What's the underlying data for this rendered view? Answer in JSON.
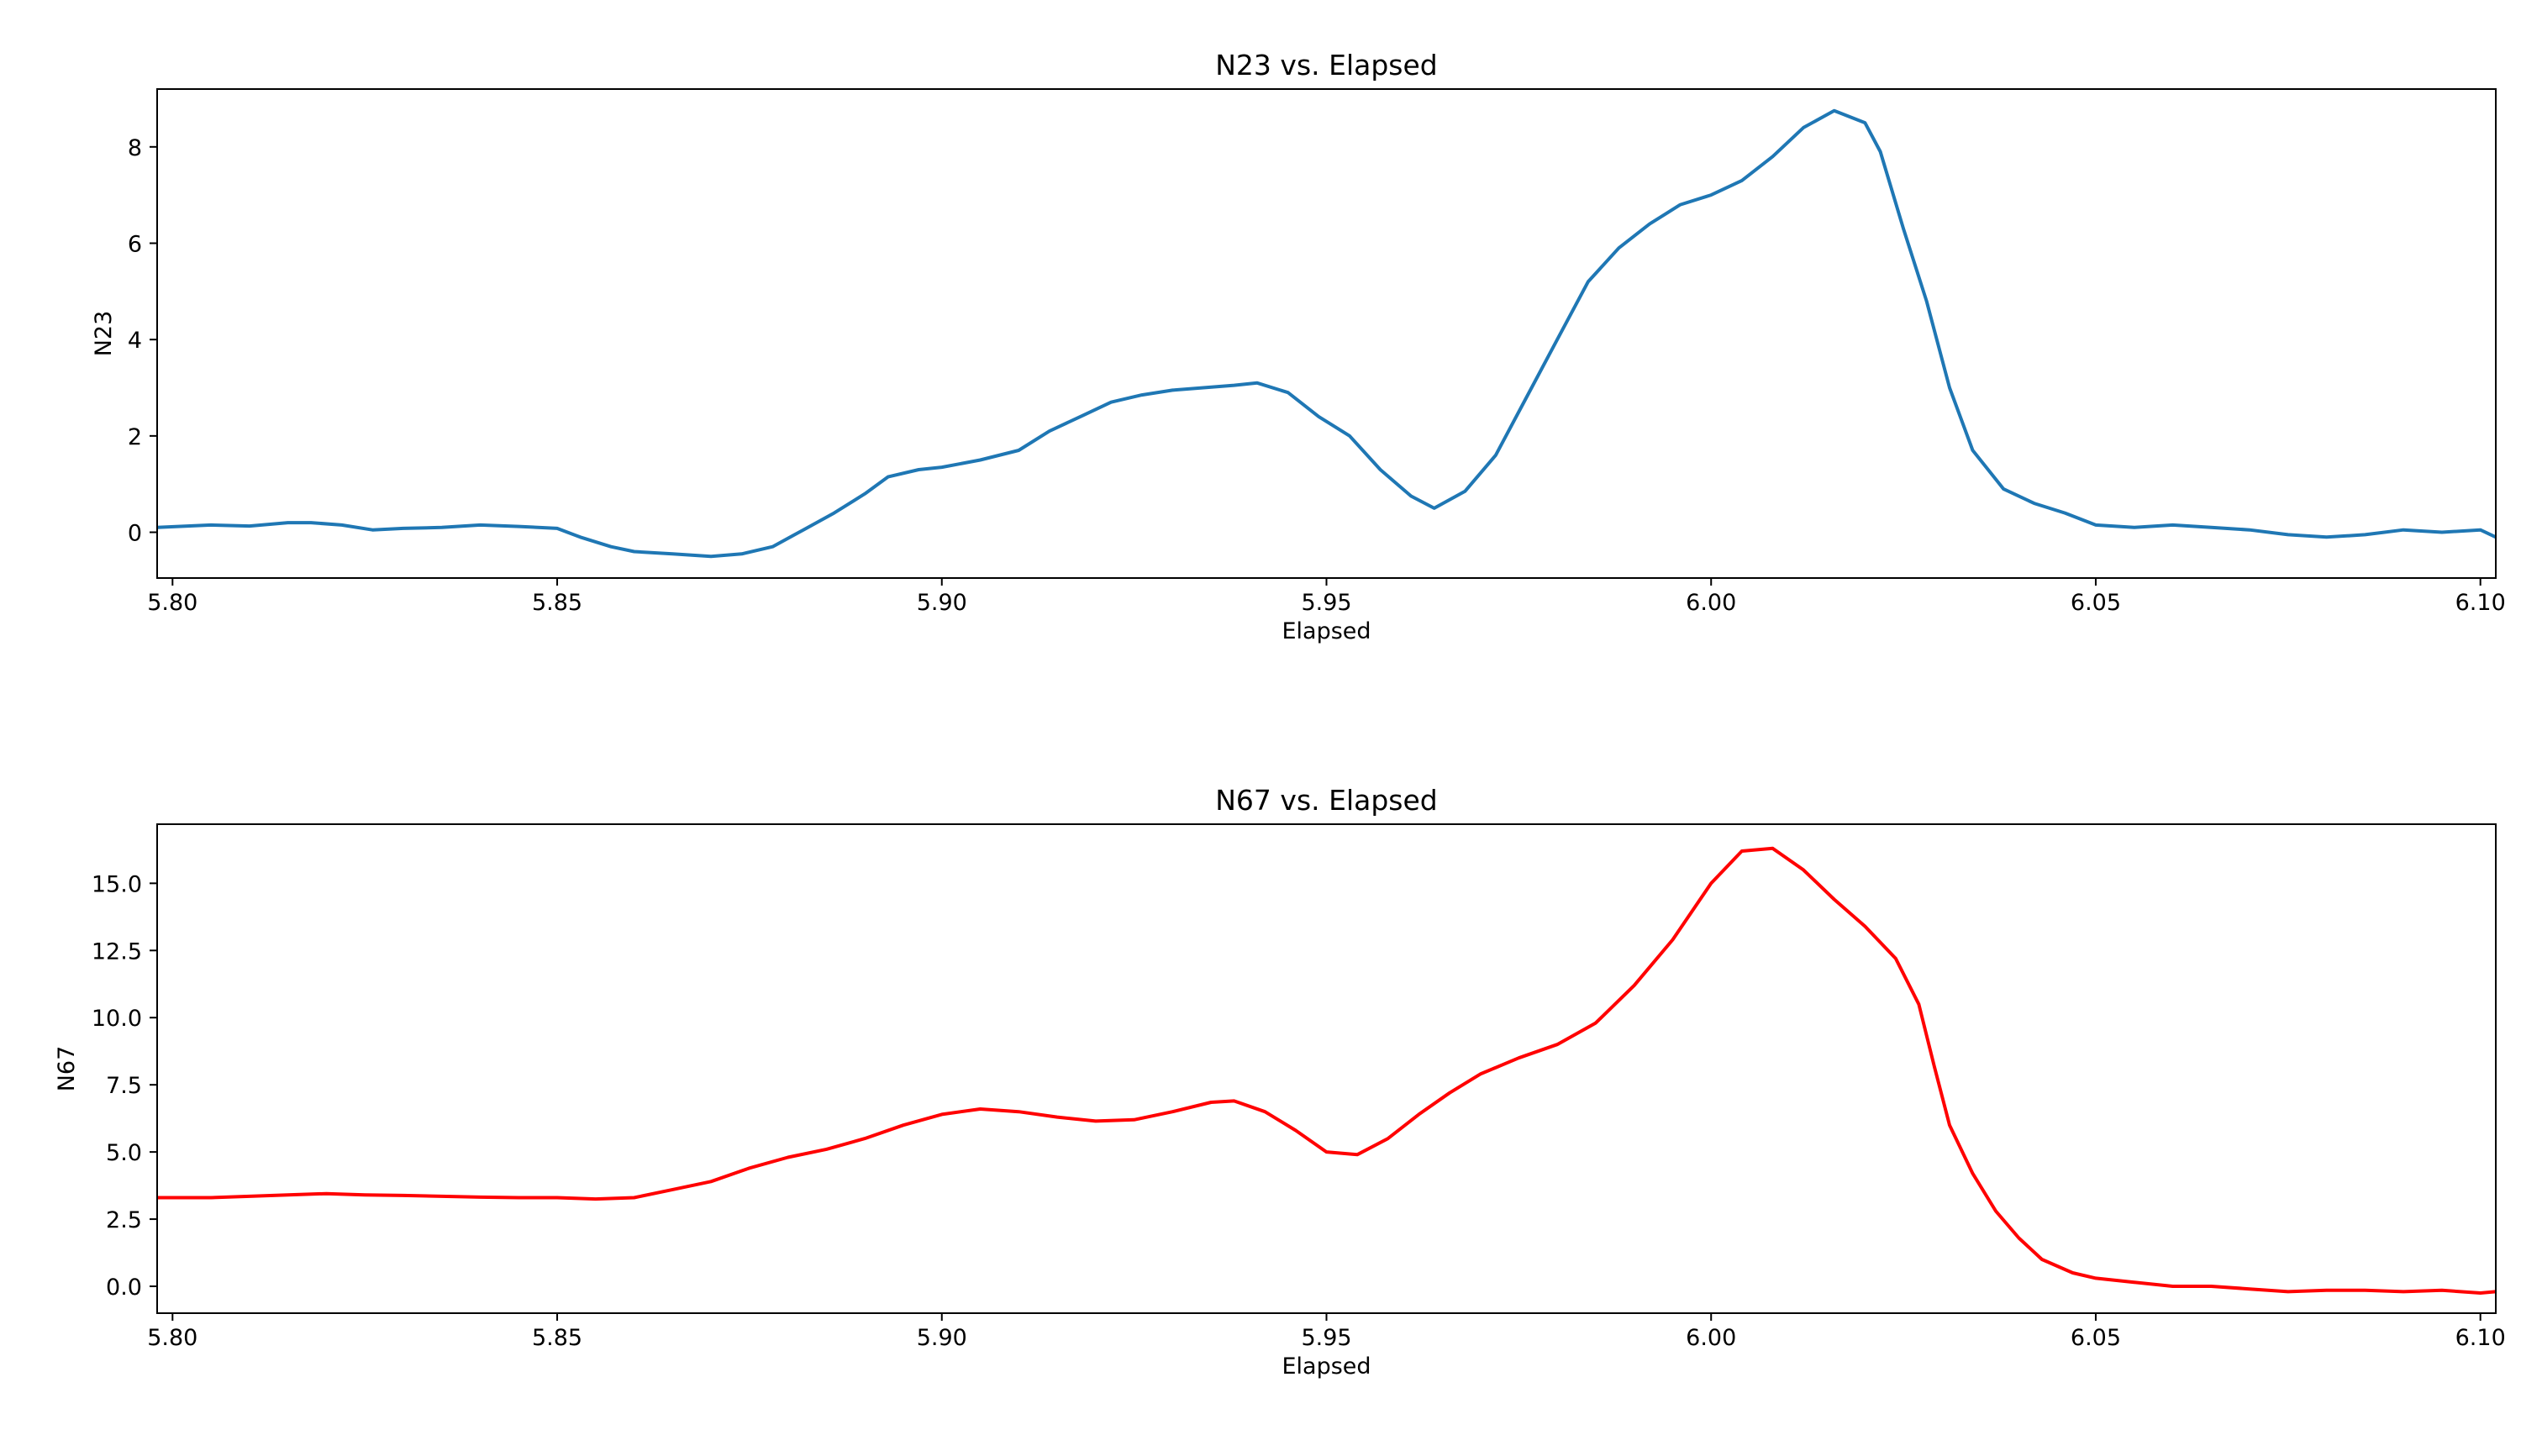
{
  "chart_data": [
    {
      "type": "line",
      "title": "N23 vs. Elapsed",
      "xlabel": "Elapsed",
      "ylabel": "N23",
      "xlim": [
        5.798,
        6.102
      ],
      "ylim": [
        -0.95,
        9.2
      ],
      "xticks": [
        "5.80",
        "5.85",
        "5.90",
        "5.95",
        "6.00",
        "6.05",
        "6.10"
      ],
      "yticks": [
        "0",
        "2",
        "4",
        "6",
        "8"
      ],
      "grid": false,
      "series": [
        {
          "color": "#1f77b4",
          "x": [
            5.798,
            5.805,
            5.81,
            5.815,
            5.818,
            5.822,
            5.826,
            5.83,
            5.835,
            5.84,
            5.845,
            5.85,
            5.853,
            5.857,
            5.86,
            5.865,
            5.87,
            5.874,
            5.878,
            5.882,
            5.886,
            5.89,
            5.893,
            5.897,
            5.9,
            5.905,
            5.91,
            5.914,
            5.918,
            5.922,
            5.926,
            5.93,
            5.934,
            5.938,
            5.941,
            5.945,
            5.949,
            5.953,
            5.957,
            5.961,
            5.964,
            5.968,
            5.972,
            5.976,
            5.98,
            5.984,
            5.988,
            5.992,
            5.996,
            6.0,
            6.004,
            6.008,
            6.012,
            6.016,
            6.02,
            6.022,
            6.025,
            6.028,
            6.031,
            6.034,
            6.038,
            6.042,
            6.046,
            6.05,
            6.055,
            6.06,
            6.065,
            6.07,
            6.075,
            6.08,
            6.085,
            6.09,
            6.095,
            6.1,
            6.102
          ],
          "y": [
            0.1,
            0.15,
            0.13,
            0.2,
            0.2,
            0.15,
            0.05,
            0.08,
            0.1,
            0.15,
            0.12,
            0.08,
            -0.1,
            -0.3,
            -0.4,
            -0.45,
            -0.5,
            -0.45,
            -0.3,
            0.05,
            0.4,
            0.8,
            1.15,
            1.3,
            1.35,
            1.5,
            1.7,
            2.1,
            2.4,
            2.7,
            2.85,
            2.95,
            3.0,
            3.05,
            3.1,
            2.9,
            2.4,
            2.0,
            1.3,
            0.75,
            0.5,
            0.85,
            1.6,
            2.8,
            4.0,
            5.2,
            5.9,
            6.4,
            6.8,
            7.0,
            7.3,
            7.8,
            8.4,
            8.75,
            8.5,
            7.9,
            6.3,
            4.8,
            3.0,
            1.7,
            0.9,
            0.6,
            0.4,
            0.15,
            0.1,
            0.15,
            0.1,
            0.05,
            -0.05,
            -0.1,
            -0.05,
            0.05,
            0.0,
            0.05,
            -0.1
          ]
        }
      ]
    },
    {
      "type": "line",
      "title": "N67 vs. Elapsed",
      "xlabel": "Elapsed",
      "ylabel": "N67",
      "xlim": [
        5.798,
        6.102
      ],
      "ylim": [
        -1.0,
        17.2
      ],
      "xticks": [
        "5.80",
        "5.85",
        "5.90",
        "5.95",
        "6.00",
        "6.05",
        "6.10"
      ],
      "yticks": [
        "0.0",
        "2.5",
        "5.0",
        "7.5",
        "10.0",
        "12.5",
        "15.0"
      ],
      "grid": false,
      "series": [
        {
          "color": "#ff0000",
          "x": [
            5.798,
            5.805,
            5.81,
            5.815,
            5.82,
            5.825,
            5.83,
            5.835,
            5.84,
            5.845,
            5.85,
            5.855,
            5.86,
            5.865,
            5.87,
            5.875,
            5.88,
            5.885,
            5.89,
            5.895,
            5.9,
            5.905,
            5.91,
            5.915,
            5.92,
            5.925,
            5.93,
            5.935,
            5.938,
            5.942,
            5.946,
            5.95,
            5.954,
            5.958,
            5.962,
            5.966,
            5.97,
            5.975,
            5.98,
            5.985,
            5.99,
            5.995,
            6.0,
            6.004,
            6.008,
            6.012,
            6.016,
            6.02,
            6.024,
            6.027,
            6.029,
            6.031,
            6.034,
            6.037,
            6.04,
            6.043,
            6.047,
            6.05,
            6.055,
            6.06,
            6.065,
            6.07,
            6.075,
            6.08,
            6.085,
            6.09,
            6.095,
            6.1,
            6.102
          ],
          "y": [
            3.3,
            3.3,
            3.35,
            3.4,
            3.45,
            3.4,
            3.38,
            3.35,
            3.32,
            3.3,
            3.3,
            3.25,
            3.3,
            3.6,
            3.9,
            4.4,
            4.8,
            5.1,
            5.5,
            6.0,
            6.4,
            6.6,
            6.5,
            6.3,
            6.15,
            6.2,
            6.5,
            6.85,
            6.9,
            6.5,
            5.8,
            5.0,
            4.9,
            5.5,
            6.4,
            7.2,
            7.9,
            8.5,
            9.0,
            9.8,
            11.2,
            12.9,
            15.0,
            16.2,
            16.3,
            15.5,
            14.4,
            13.4,
            12.2,
            10.5,
            8.2,
            6.0,
            4.2,
            2.8,
            1.8,
            1.0,
            0.5,
            0.3,
            0.15,
            0.0,
            0.0,
            -0.1,
            -0.2,
            -0.15,
            -0.15,
            -0.2,
            -0.15,
            -0.25,
            -0.2
          ]
        }
      ]
    }
  ]
}
